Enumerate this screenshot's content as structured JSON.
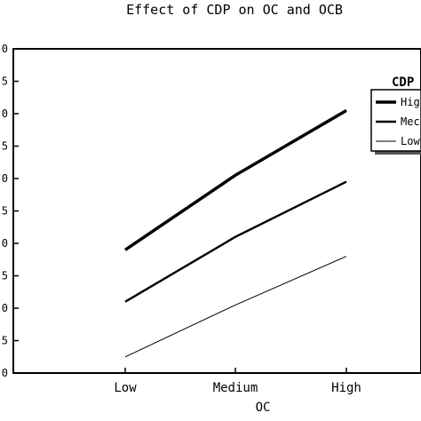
{
  "chart_data": {
    "type": "line",
    "title": "Effect of CDP on OC and OCB",
    "xlabel": "OC",
    "ylabel": "",
    "categories": [
      "Low",
      "Medium",
      "High"
    ],
    "ylim": [
      0,
      10
    ],
    "y_tick_labels": [
      "0",
      "5",
      "0",
      "5",
      "0",
      "5",
      "0",
      "5",
      "0",
      "5",
      "0"
    ],
    "legend": {
      "title": "CDP",
      "entries": [
        "Hig",
        "Mec",
        "Low"
      ],
      "placement": "top-right"
    },
    "series": [
      {
        "name": "High",
        "values": [
          3.8,
          6.1,
          8.1
        ]
      },
      {
        "name": "Medium",
        "values": [
          2.2,
          4.2,
          5.9
        ]
      },
      {
        "name": "Low",
        "values": [
          0.5,
          2.1,
          3.6
        ]
      }
    ],
    "grid": false
  }
}
